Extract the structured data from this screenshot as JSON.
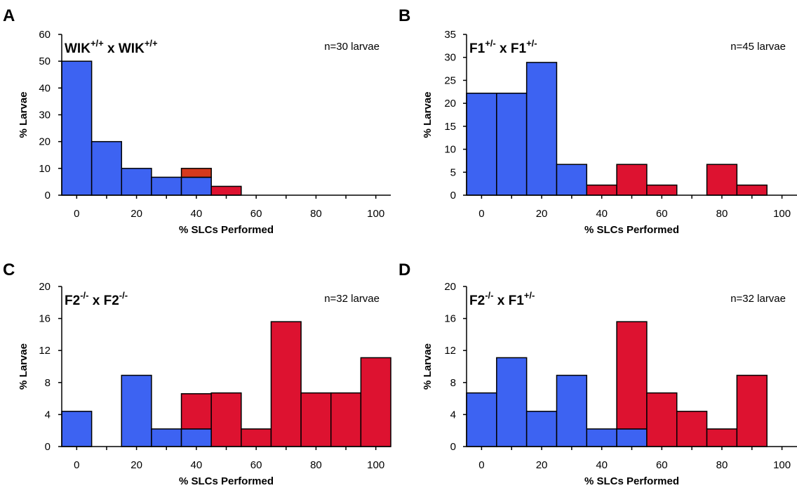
{
  "colors": {
    "blue": "#3d63f2",
    "red": "#dd1230",
    "orange_red": "#d63a1e",
    "axis": "#000000"
  },
  "chart_data": [
    {
      "type": "bar",
      "panel": "A",
      "genotype": {
        "a": "WIK",
        "a_sup": "+/+",
        "x": "x",
        "b": "WIK",
        "b_sup": "+/+"
      },
      "n_label": "n=30 larvae",
      "xlabel": "% SLCs Performed",
      "ylabel": "% Larvae",
      "xlim": [
        -5,
        105
      ],
      "ylim": [
        0,
        60
      ],
      "xticks": [
        0,
        20,
        40,
        60,
        80,
        100
      ],
      "yticks": [
        0,
        10,
        20,
        30,
        40,
        50,
        60
      ],
      "bin_width": 10,
      "bars": [
        {
          "x": 0,
          "blue": 50,
          "red": 0
        },
        {
          "x": 10,
          "blue": 20,
          "red": 0
        },
        {
          "x": 20,
          "blue": 10,
          "red": 0
        },
        {
          "x": 30,
          "blue": 6.7,
          "red": 0
        },
        {
          "x": 40,
          "blue": 6.7,
          "red": 3.3,
          "red_color": "orange_red"
        },
        {
          "x": 50,
          "blue": 0,
          "red": 3.3
        }
      ]
    },
    {
      "type": "bar",
      "panel": "B",
      "genotype": {
        "a": "F1",
        "a_sup": "+/-",
        "x": "x",
        "b": "F1",
        "b_sup": "+/-"
      },
      "n_label": "n=45 larvae",
      "xlabel": "% SLCs Performed",
      "ylabel": "% Larvae",
      "xlim": [
        -5,
        105
      ],
      "ylim": [
        0,
        35
      ],
      "xticks": [
        0,
        20,
        40,
        60,
        80,
        100
      ],
      "yticks": [
        0,
        5,
        10,
        15,
        20,
        25,
        30,
        35
      ],
      "bin_width": 10,
      "bars": [
        {
          "x": 0,
          "blue": 22.2,
          "red": 0
        },
        {
          "x": 10,
          "blue": 22.2,
          "red": 0
        },
        {
          "x": 20,
          "blue": 28.9,
          "red": 0
        },
        {
          "x": 30,
          "blue": 6.7,
          "red": 0
        },
        {
          "x": 40,
          "blue": 0,
          "red": 2.2
        },
        {
          "x": 50,
          "blue": 0,
          "red": 6.7
        },
        {
          "x": 60,
          "blue": 0,
          "red": 2.2
        },
        {
          "x": 80,
          "blue": 0,
          "red": 6.7
        },
        {
          "x": 90,
          "blue": 0,
          "red": 2.2
        }
      ]
    },
    {
      "type": "bar",
      "panel": "C",
      "genotype": {
        "a": "F2",
        "a_sup": "-/-",
        "x": "x",
        "b": "F2",
        "b_sup": "-/-"
      },
      "n_label": "n=32 larvae",
      "xlabel": "% SLCs Performed",
      "ylabel": "% Larvae",
      "xlim": [
        -5,
        105
      ],
      "ylim": [
        0,
        20
      ],
      "xticks": [
        0,
        20,
        40,
        60,
        80,
        100
      ],
      "yticks": [
        0,
        4,
        8,
        12,
        16,
        20
      ],
      "bin_width": 10,
      "bars": [
        {
          "x": 0,
          "blue": 4.4,
          "red": 0
        },
        {
          "x": 20,
          "blue": 8.9,
          "red": 0
        },
        {
          "x": 30,
          "blue": 2.2,
          "red": 0
        },
        {
          "x": 40,
          "blue": 2.2,
          "red": 4.4
        },
        {
          "x": 50,
          "blue": 0,
          "red": 6.7
        },
        {
          "x": 60,
          "blue": 0,
          "red": 2.2
        },
        {
          "x": 70,
          "blue": 0,
          "red": 15.6
        },
        {
          "x": 80,
          "blue": 0,
          "red": 6.7
        },
        {
          "x": 90,
          "blue": 0,
          "red": 6.7
        },
        {
          "x": 100,
          "blue": 0,
          "red": 11.1
        }
      ]
    },
    {
      "type": "bar",
      "panel": "D",
      "genotype": {
        "a": "F2",
        "a_sup": "-/-",
        "x": "x",
        "b": "F1",
        "b_sup": "+/-"
      },
      "n_label": "n=32 larvae",
      "xlabel": "% SLCs Performed",
      "ylabel": "% Larvae",
      "xlim": [
        -5,
        105
      ],
      "ylim": [
        0,
        20
      ],
      "xticks": [
        0,
        20,
        40,
        60,
        80,
        100
      ],
      "yticks": [
        0,
        4,
        8,
        12,
        16,
        20
      ],
      "bin_width": 10,
      "bars": [
        {
          "x": 0,
          "blue": 6.7,
          "red": 0
        },
        {
          "x": 10,
          "blue": 11.1,
          "red": 0
        },
        {
          "x": 20,
          "blue": 4.4,
          "red": 0
        },
        {
          "x": 30,
          "blue": 8.9,
          "red": 0
        },
        {
          "x": 40,
          "blue": 2.2,
          "red": 0
        },
        {
          "x": 50,
          "blue": 2.2,
          "red": 13.4
        },
        {
          "x": 60,
          "blue": 0,
          "red": 6.7
        },
        {
          "x": 70,
          "blue": 0,
          "red": 4.4
        },
        {
          "x": 80,
          "blue": 0,
          "red": 2.2
        },
        {
          "x": 90,
          "blue": 0,
          "red": 8.9
        }
      ]
    }
  ]
}
